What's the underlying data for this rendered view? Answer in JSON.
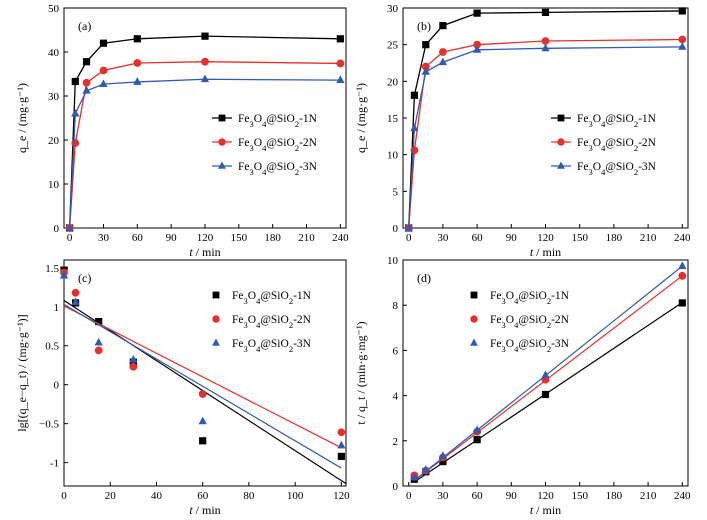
{
  "chart_data": [
    {
      "panel": "(a)",
      "type": "line",
      "xlabel_italic": "t",
      "xlabel_rest": " / min",
      "ylabel": "q_e / (mg·g⁻¹)",
      "xlim": [
        -5,
        245
      ],
      "ylim": [
        0,
        50
      ],
      "xticks": [
        0,
        30,
        60,
        90,
        120,
        150,
        180,
        210,
        240
      ],
      "yticks": [
        0,
        10,
        20,
        30,
        40,
        50
      ],
      "legend_position": "right-middle",
      "series": [
        {
          "name": "Fe3O4@SiO2-1N",
          "color": "#000000",
          "marker": "square",
          "x": [
            0,
            5,
            15,
            30,
            60,
            120,
            240
          ],
          "y": [
            0,
            33.3,
            37.8,
            42.0,
            43.0,
            43.6,
            43.0
          ]
        },
        {
          "name": "Fe3O4@SiO2-2N",
          "color": "#e8302a",
          "marker": "circle",
          "x": [
            0,
            5,
            15,
            30,
            60,
            120,
            240
          ],
          "y": [
            0,
            19.3,
            33.0,
            35.8,
            37.5,
            37.8,
            37.4
          ]
        },
        {
          "name": "Fe3O4@SiO2-3N",
          "color": "#2f5bb7",
          "marker": "triangle",
          "x": [
            0,
            5,
            15,
            30,
            60,
            120,
            240
          ],
          "y": [
            0,
            26.0,
            31.2,
            32.7,
            33.2,
            33.8,
            33.6
          ]
        }
      ]
    },
    {
      "panel": "(b)",
      "type": "line",
      "xlabel_italic": "t",
      "xlabel_rest": " / min",
      "ylabel": "q_e / (mg·g⁻¹)",
      "xlim": [
        -5,
        245
      ],
      "ylim": [
        0,
        30
      ],
      "xticks": [
        0,
        30,
        60,
        90,
        120,
        150,
        180,
        210,
        240
      ],
      "yticks": [
        0,
        5,
        10,
        15,
        20,
        25,
        30
      ],
      "legend_position": "right-middle",
      "series": [
        {
          "name": "Fe3O4@SiO2-1N",
          "color": "#000000",
          "marker": "square",
          "x": [
            0,
            5,
            15,
            30,
            60,
            120,
            240
          ],
          "y": [
            0,
            18.1,
            25.0,
            27.6,
            29.3,
            29.4,
            29.6
          ]
        },
        {
          "name": "Fe3O4@SiO2-2N",
          "color": "#e8302a",
          "marker": "circle",
          "x": [
            0,
            5,
            15,
            30,
            60,
            120,
            240
          ],
          "y": [
            0,
            10.6,
            22.0,
            24.0,
            25.0,
            25.5,
            25.7
          ]
        },
        {
          "name": "Fe3O4@SiO2-3N",
          "color": "#2f5bb7",
          "marker": "triangle",
          "x": [
            0,
            5,
            15,
            30,
            60,
            120,
            240
          ],
          "y": [
            0,
            13.6,
            21.3,
            22.6,
            24.3,
            24.5,
            24.7
          ]
        }
      ]
    },
    {
      "panel": "(c)",
      "type": "scatter",
      "xlabel_italic": "t",
      "xlabel_rest": " / min",
      "ylabel": "lg[(q_e−q_t) / (mg·g⁻¹)]",
      "xlim": [
        0,
        122
      ],
      "ylim": [
        -1.3,
        1.6
      ],
      "xticks": [
        0,
        20,
        40,
        60,
        80,
        100,
        120
      ],
      "yticks": [
        -1.0,
        -0.5,
        0.0,
        0.5,
        1.0,
        1.5
      ],
      "legend_position": "top-right",
      "series": [
        {
          "name": "Fe3O4@SiO2-1N",
          "color": "#000000",
          "marker": "square",
          "x": [
            0,
            5,
            15,
            30,
            60,
            120
          ],
          "y": [
            1.47,
            1.05,
            0.81,
            0.29,
            -0.72,
            -0.92
          ],
          "fit": [
            [
              0,
              1.08
            ],
            [
              122,
              -1.27
            ]
          ]
        },
        {
          "name": "Fe3O4@SiO2-2N",
          "color": "#e8302a",
          "marker": "circle",
          "x": [
            0,
            5,
            15,
            30,
            60,
            120
          ],
          "y": [
            1.44,
            1.18,
            0.44,
            0.23,
            -0.12,
            -0.61
          ],
          "fit": [
            [
              0,
              1.01
            ],
            [
              120,
              -0.81
            ]
          ]
        },
        {
          "name": "Fe3O4@SiO2-3N",
          "color": "#2f5bb7",
          "marker": "triangle",
          "x": [
            0,
            5,
            15,
            30,
            60,
            120
          ],
          "y": [
            1.4,
            1.06,
            0.54,
            0.32,
            -0.47,
            -0.78
          ],
          "fit": [
            [
              0,
              1.03
            ],
            [
              120,
              -1.07
            ]
          ]
        }
      ]
    },
    {
      "panel": "(d)",
      "type": "scatter",
      "xlabel_italic": "t",
      "xlabel_rest": " / min",
      "ylabel": "t / q_t / (min·g·mg⁻¹)",
      "xlim": [
        -5,
        245
      ],
      "ylim": [
        0,
        10
      ],
      "xticks": [
        0,
        30,
        60,
        90,
        120,
        150,
        180,
        210,
        240
      ],
      "yticks": [
        0,
        2,
        4,
        6,
        8,
        10
      ],
      "legend_position": "top-left",
      "series": [
        {
          "name": "Fe3O4@SiO2-1N",
          "color": "#000000",
          "marker": "square",
          "x": [
            5,
            15,
            30,
            60,
            120,
            240
          ],
          "y": [
            0.3,
            0.63,
            1.08,
            2.05,
            4.05,
            8.1
          ],
          "fit": [
            [
              5,
              0.18
            ],
            [
              240,
              8.12
            ]
          ]
        },
        {
          "name": "Fe3O4@SiO2-2N",
          "color": "#e8302a",
          "marker": "circle",
          "x": [
            5,
            15,
            30,
            60,
            120,
            240
          ],
          "y": [
            0.47,
            0.68,
            1.26,
            2.4,
            4.7,
            9.3
          ],
          "fit": [
            [
              5,
              0.24
            ],
            [
              240,
              9.3
            ]
          ]
        },
        {
          "name": "Fe3O4@SiO2-3N",
          "color": "#2f5bb7",
          "marker": "triangle",
          "x": [
            5,
            15,
            30,
            60,
            120,
            240
          ],
          "y": [
            0.37,
            0.71,
            1.33,
            2.47,
            4.9,
            9.73
          ],
          "fit": [
            [
              5,
              0.25
            ],
            [
              240,
              9.73
            ]
          ]
        }
      ]
    }
  ]
}
